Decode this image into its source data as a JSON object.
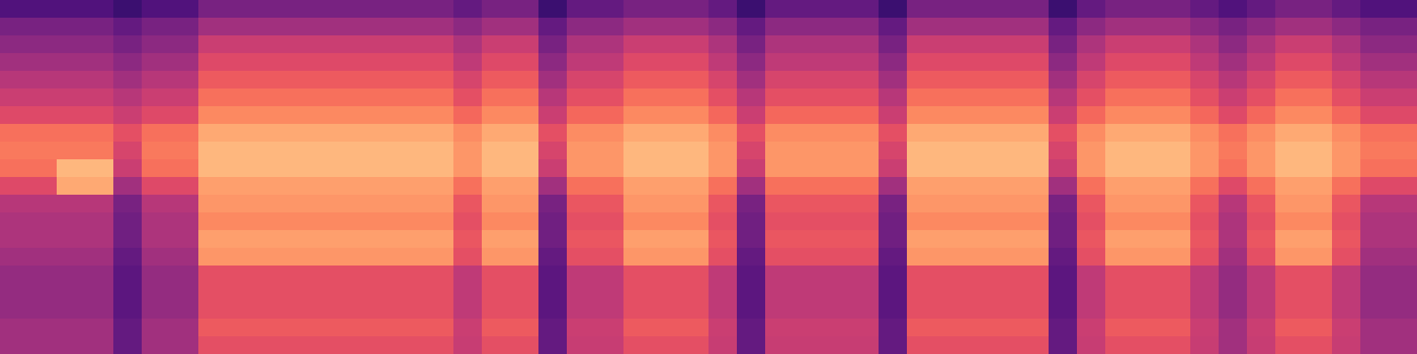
{
  "chart_data": {
    "type": "heatmap",
    "tick_labels": false,
    "zlim": [
      0,
      100
    ],
    "z": [
      [
        25,
        25,
        25,
        25,
        20,
        25,
        25,
        35,
        35,
        35,
        35,
        35,
        35,
        35,
        35,
        35,
        30,
        35,
        35,
        20,
        30,
        30,
        35,
        35,
        35,
        30,
        20,
        30,
        30,
        30,
        30,
        20,
        35,
        35,
        35,
        35,
        35,
        20,
        30,
        35,
        35,
        35,
        30,
        25,
        30,
        35,
        35,
        30,
        25,
        25
      ],
      [
        35,
        35,
        35,
        35,
        30,
        35,
        35,
        45,
        45,
        45,
        45,
        45,
        45,
        45,
        45,
        45,
        40,
        45,
        45,
        30,
        40,
        40,
        45,
        45,
        45,
        40,
        30,
        40,
        40,
        40,
        40,
        30,
        45,
        45,
        45,
        45,
        45,
        30,
        40,
        45,
        45,
        45,
        40,
        35,
        40,
        45,
        45,
        40,
        35,
        35
      ],
      [
        40,
        40,
        40,
        40,
        35,
        40,
        40,
        55,
        55,
        55,
        55,
        55,
        55,
        55,
        55,
        55,
        48,
        55,
        55,
        35,
        48,
        48,
        55,
        55,
        55,
        48,
        35,
        48,
        48,
        48,
        48,
        35,
        55,
        55,
        55,
        55,
        55,
        35,
        48,
        55,
        55,
        55,
        48,
        40,
        48,
        55,
        55,
        48,
        40,
        40
      ],
      [
        45,
        45,
        45,
        45,
        40,
        45,
        45,
        60,
        60,
        60,
        60,
        60,
        60,
        60,
        60,
        60,
        52,
        60,
        60,
        40,
        52,
        52,
        60,
        60,
        60,
        52,
        40,
        52,
        52,
        52,
        52,
        40,
        60,
        60,
        60,
        60,
        60,
        40,
        52,
        60,
        60,
        60,
        52,
        45,
        52,
        60,
        60,
        52,
        45,
        45
      ],
      [
        50,
        50,
        50,
        50,
        45,
        50,
        50,
        65,
        65,
        65,
        65,
        65,
        65,
        65,
        65,
        65,
        58,
        65,
        65,
        45,
        58,
        58,
        65,
        65,
        65,
        58,
        45,
        58,
        58,
        58,
        58,
        45,
        65,
        65,
        65,
        65,
        65,
        45,
        58,
        65,
        65,
        65,
        58,
        50,
        58,
        65,
        65,
        58,
        50,
        50
      ],
      [
        55,
        55,
        55,
        55,
        50,
        55,
        55,
        70,
        70,
        70,
        70,
        70,
        70,
        70,
        70,
        70,
        62,
        70,
        70,
        50,
        62,
        62,
        70,
        70,
        70,
        62,
        50,
        62,
        62,
        62,
        62,
        50,
        70,
        70,
        70,
        70,
        70,
        50,
        62,
        70,
        70,
        70,
        62,
        55,
        62,
        70,
        70,
        62,
        55,
        55
      ],
      [
        60,
        60,
        60,
        60,
        55,
        60,
        60,
        75,
        75,
        75,
        75,
        75,
        75,
        75,
        75,
        75,
        68,
        75,
        75,
        55,
        68,
        68,
        75,
        75,
        75,
        68,
        55,
        68,
        68,
        68,
        68,
        55,
        75,
        75,
        75,
        75,
        75,
        55,
        68,
        75,
        75,
        75,
        68,
        60,
        68,
        75,
        75,
        68,
        60,
        60
      ],
      [
        70,
        70,
        70,
        70,
        62,
        70,
        70,
        82,
        82,
        82,
        82,
        82,
        82,
        82,
        82,
        82,
        76,
        82,
        82,
        62,
        76,
        76,
        82,
        82,
        82,
        76,
        62,
        76,
        76,
        76,
        76,
        62,
        82,
        82,
        82,
        82,
        82,
        62,
        76,
        82,
        82,
        82,
        76,
        70,
        76,
        82,
        82,
        76,
        70,
        70
      ],
      [
        72,
        72,
        72,
        72,
        58,
        72,
        72,
        85,
        85,
        85,
        85,
        85,
        85,
        85,
        85,
        85,
        78,
        85,
        85,
        58,
        78,
        78,
        85,
        85,
        85,
        78,
        58,
        78,
        78,
        78,
        78,
        58,
        85,
        85,
        85,
        85,
        85,
        58,
        78,
        85,
        85,
        85,
        78,
        72,
        78,
        85,
        85,
        78,
        72,
        72
      ],
      [
        70,
        70,
        85,
        85,
        55,
        70,
        70,
        85,
        85,
        85,
        85,
        85,
        85,
        85,
        85,
        85,
        78,
        85,
        85,
        55,
        78,
        78,
        85,
        85,
        85,
        78,
        55,
        78,
        78,
        78,
        78,
        55,
        85,
        85,
        85,
        85,
        85,
        55,
        78,
        85,
        85,
        85,
        78,
        70,
        78,
        85,
        85,
        78,
        70,
        70
      ],
      [
        60,
        60,
        82,
        82,
        45,
        60,
        60,
        80,
        80,
        80,
        80,
        80,
        80,
        80,
        80,
        80,
        70,
        80,
        80,
        45,
        70,
        70,
        80,
        80,
        80,
        70,
        45,
        70,
        70,
        70,
        70,
        45,
        80,
        80,
        80,
        80,
        80,
        45,
        70,
        80,
        80,
        80,
        70,
        60,
        70,
        80,
        80,
        70,
        60,
        60
      ],
      [
        50,
        50,
        50,
        50,
        35,
        50,
        50,
        78,
        78,
        78,
        78,
        78,
        78,
        78,
        78,
        78,
        64,
        78,
        78,
        35,
        64,
        64,
        78,
        78,
        78,
        64,
        35,
        64,
        64,
        64,
        64,
        35,
        78,
        78,
        78,
        78,
        78,
        35,
        64,
        78,
        78,
        78,
        64,
        50,
        64,
        78,
        78,
        64,
        50,
        50
      ],
      [
        48,
        48,
        48,
        48,
        33,
        48,
        48,
        75,
        75,
        75,
        75,
        75,
        75,
        75,
        75,
        75,
        62,
        75,
        75,
        33,
        62,
        62,
        75,
        75,
        75,
        62,
        33,
        62,
        62,
        62,
        62,
        33,
        75,
        75,
        75,
        75,
        75,
        33,
        62,
        75,
        75,
        75,
        62,
        48,
        62,
        75,
        75,
        62,
        48,
        48
      ],
      [
        48,
        48,
        48,
        48,
        33,
        48,
        48,
        80,
        80,
        80,
        80,
        80,
        80,
        80,
        80,
        80,
        64,
        80,
        80,
        33,
        64,
        64,
        80,
        80,
        80,
        64,
        33,
        64,
        64,
        64,
        64,
        33,
        80,
        80,
        80,
        80,
        80,
        33,
        64,
        80,
        80,
        80,
        64,
        48,
        64,
        80,
        80,
        64,
        48,
        48
      ],
      [
        45,
        45,
        45,
        45,
        30,
        45,
        45,
        78,
        78,
        78,
        78,
        78,
        78,
        78,
        78,
        78,
        62,
        78,
        78,
        30,
        62,
        62,
        78,
        78,
        78,
        62,
        30,
        62,
        62,
        62,
        62,
        30,
        78,
        78,
        78,
        78,
        78,
        30,
        62,
        78,
        78,
        78,
        62,
        45,
        62,
        78,
        78,
        62,
        45,
        45
      ],
      [
        42,
        42,
        42,
        42,
        28,
        42,
        42,
        62,
        62,
        62,
        62,
        62,
        62,
        62,
        62,
        62,
        52,
        62,
        62,
        28,
        52,
        52,
        62,
        62,
        62,
        52,
        28,
        52,
        52,
        52,
        52,
        28,
        62,
        62,
        62,
        62,
        62,
        28,
        52,
        62,
        62,
        62,
        52,
        42,
        52,
        62,
        62,
        52,
        42,
        42
      ],
      [
        42,
        42,
        42,
        42,
        28,
        42,
        42,
        62,
        62,
        62,
        62,
        62,
        62,
        62,
        62,
        62,
        52,
        62,
        62,
        28,
        52,
        52,
        62,
        62,
        62,
        52,
        28,
        52,
        52,
        52,
        52,
        28,
        62,
        62,
        62,
        62,
        62,
        28,
        52,
        62,
        62,
        62,
        52,
        42,
        52,
        62,
        62,
        52,
        42,
        42
      ],
      [
        42,
        42,
        42,
        42,
        28,
        42,
        42,
        62,
        62,
        62,
        62,
        62,
        62,
        62,
        62,
        62,
        52,
        62,
        62,
        28,
        52,
        52,
        62,
        62,
        62,
        52,
        28,
        52,
        52,
        52,
        52,
        28,
        62,
        62,
        62,
        62,
        62,
        28,
        52,
        62,
        62,
        62,
        52,
        42,
        52,
        62,
        62,
        52,
        42,
        42
      ],
      [
        45,
        45,
        45,
        45,
        30,
        45,
        45,
        65,
        65,
        65,
        65,
        65,
        65,
        65,
        65,
        65,
        55,
        65,
        65,
        30,
        55,
        55,
        65,
        65,
        65,
        55,
        30,
        55,
        55,
        55,
        55,
        30,
        65,
        65,
        65,
        65,
        65,
        30,
        55,
        65,
        65,
        65,
        55,
        45,
        55,
        65,
        65,
        55,
        45,
        45
      ],
      [
        45,
        45,
        45,
        45,
        30,
        45,
        45,
        62,
        62,
        62,
        62,
        62,
        62,
        62,
        62,
        62,
        54,
        62,
        62,
        30,
        54,
        54,
        62,
        62,
        62,
        54,
        30,
        54,
        54,
        54,
        54,
        30,
        62,
        62,
        62,
        62,
        62,
        30,
        54,
        62,
        62,
        62,
        54,
        45,
        54,
        62,
        62,
        54,
        45,
        45
      ]
    ]
  }
}
